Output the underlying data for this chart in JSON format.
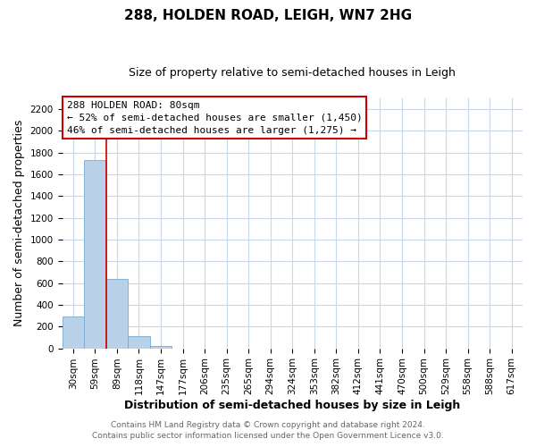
{
  "title": "288, HOLDEN ROAD, LEIGH, WN7 2HG",
  "subtitle": "Size of property relative to semi-detached houses in Leigh",
  "xlabel": "Distribution of semi-detached houses by size in Leigh",
  "ylabel": "Number of semi-detached properties",
  "bar_labels": [
    "30sqm",
    "59sqm",
    "89sqm",
    "118sqm",
    "147sqm",
    "177sqm",
    "206sqm",
    "235sqm",
    "265sqm",
    "294sqm",
    "324sqm",
    "353sqm",
    "382sqm",
    "412sqm",
    "441sqm",
    "470sqm",
    "500sqm",
    "529sqm",
    "558sqm",
    "588sqm",
    "617sqm"
  ],
  "bar_values": [
    290,
    1735,
    640,
    110,
    25,
    0,
    0,
    0,
    0,
    0,
    0,
    0,
    0,
    0,
    0,
    0,
    0,
    0,
    0,
    0,
    0
  ],
  "bar_color": "#b8d0e8",
  "bar_edge_color": "#7aaacf",
  "marker_line_color": "#cc0000",
  "marker_bar_index": 1,
  "ylim": [
    0,
    2300
  ],
  "yticks": [
    0,
    200,
    400,
    600,
    800,
    1000,
    1200,
    1400,
    1600,
    1800,
    2000,
    2200
  ],
  "annotation_title": "288 HOLDEN ROAD: 80sqm",
  "annotation_line1": "← 52% of semi-detached houses are smaller (1,450)",
  "annotation_line2": "46% of semi-detached houses are larger (1,275) →",
  "annotation_box_color": "#ffffff",
  "annotation_box_edge": "#cc0000",
  "footer1": "Contains HM Land Registry data © Crown copyright and database right 2024.",
  "footer2": "Contains public sector information licensed under the Open Government Licence v3.0.",
  "bg_color": "#ffffff",
  "grid_color": "#c8d8ea",
  "title_fontsize": 11,
  "subtitle_fontsize": 9,
  "axis_label_fontsize": 9,
  "tick_fontsize": 7.5,
  "annotation_fontsize": 8,
  "footer_fontsize": 6.5
}
